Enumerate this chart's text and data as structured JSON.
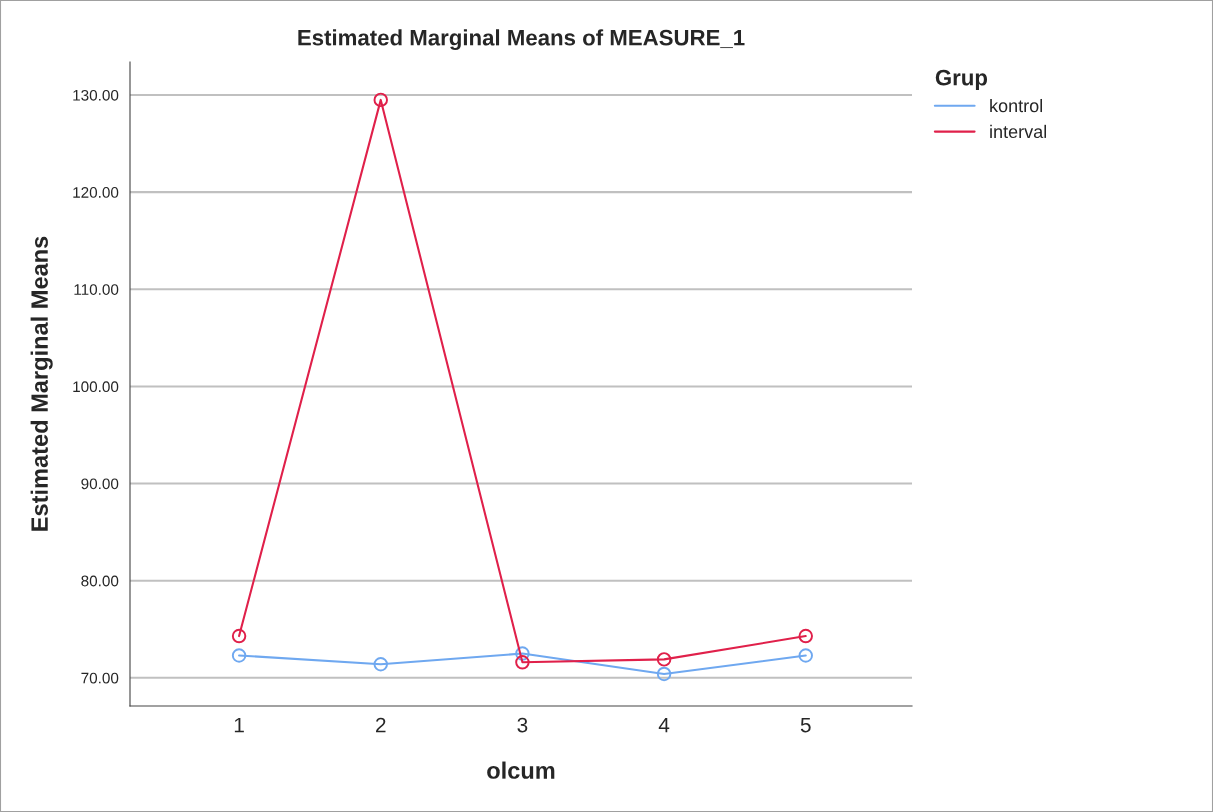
{
  "chart_data": {
    "type": "line",
    "title": "Estimated Marginal Means of MEASURE_1",
    "xlabel": "olcum",
    "ylabel": "Estimated Marginal Means",
    "legend_title": "Grup",
    "categories": [
      "1",
      "2",
      "3",
      "4",
      "5"
    ],
    "series": [
      {
        "name": "kontrol",
        "color": "#6fa8f0",
        "values": [
          72.3,
          71.4,
          72.5,
          70.4,
          72.3
        ]
      },
      {
        "name": "interval",
        "color": "#e0204a",
        "values": [
          74.3,
          129.5,
          71.6,
          71.9,
          74.3
        ]
      }
    ],
    "ylim": [
      67.1,
      133.4
    ],
    "yticks": [
      {
        "value": 70,
        "label": "70.00"
      },
      {
        "value": 80,
        "label": "80.00"
      },
      {
        "value": 90,
        "label": "90.00"
      },
      {
        "value": 100,
        "label": "100.00"
      },
      {
        "value": 110,
        "label": "110.00"
      },
      {
        "value": 120,
        "label": "120.00"
      },
      {
        "value": 130,
        "label": "130.00"
      }
    ],
    "grid": "y",
    "legend": "top right",
    "marker": "circle",
    "line_style": "solid"
  }
}
